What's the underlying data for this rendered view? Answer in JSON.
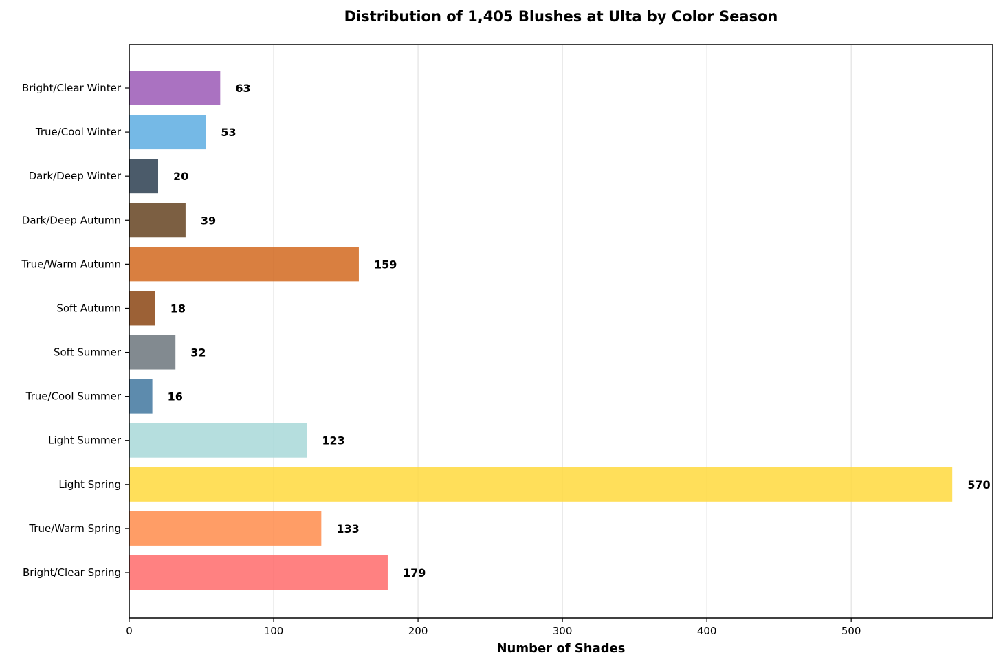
{
  "chart_data": {
    "type": "bar",
    "orientation": "horizontal",
    "title": "Distribution of 1,405 Blushes at Ulta by Color Season",
    "xlabel": "Number of Shades",
    "ylabel": "",
    "xlim": [
      0,
      598
    ],
    "xticks": [
      0,
      100,
      200,
      300,
      400,
      500
    ],
    "grid": "x",
    "categories": [
      "Bright/Clear Spring",
      "True/Warm Spring",
      "Light Spring",
      "Light Summer",
      "True/Cool Summer",
      "Soft Summer",
      "Soft Autumn",
      "True/Warm Autumn",
      "Dark/Deep Autumn",
      "Dark/Deep Winter",
      "True/Cool Winter",
      "Bright/Clear Winter"
    ],
    "values": [
      179,
      133,
      570,
      123,
      16,
      32,
      18,
      159,
      39,
      20,
      53,
      63
    ],
    "colors": [
      "#FF6B6B",
      "#FF8C4B",
      "#FFD93D",
      "#A8D8D8",
      "#41779F",
      "#6C757D",
      "#8B4513",
      "#D2691E",
      "#654321",
      "#2C3E50",
      "#5DADE2",
      "#9B59B6"
    ]
  }
}
